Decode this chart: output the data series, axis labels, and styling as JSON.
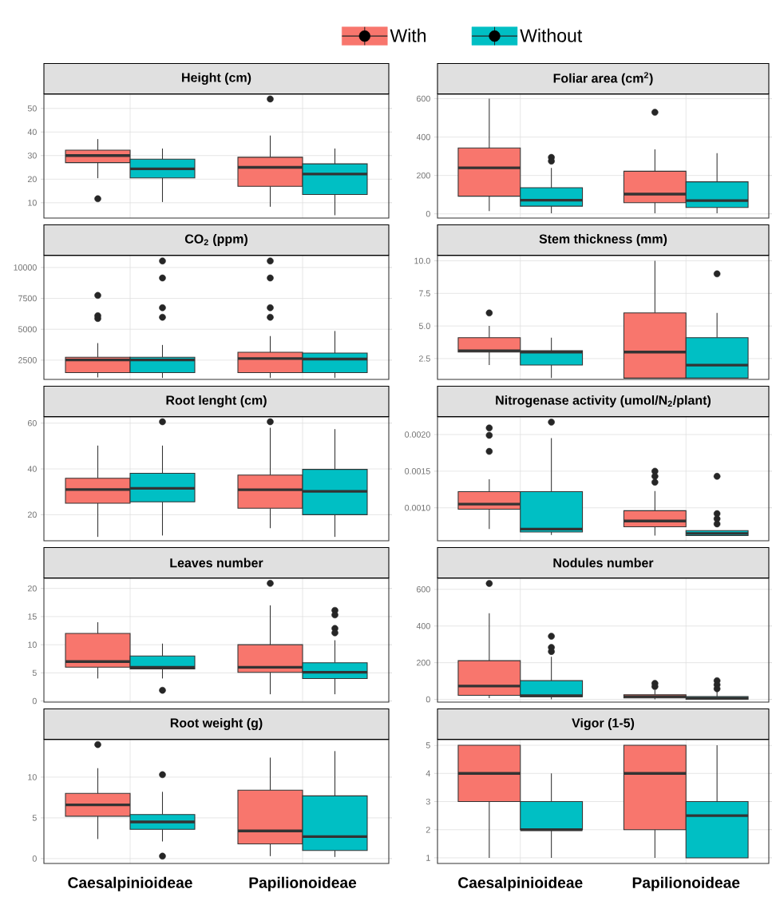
{
  "chart_data": [
    {
      "type": "box",
      "title": "Height (cm)",
      "categories": [
        null,
        null
      ],
      "ylim": [
        3.5,
        56
      ],
      "yticks": [
        10,
        20,
        30,
        40,
        50
      ],
      "grid": true,
      "tick_labels": "y",
      "legend": "top",
      "series": [
        {
          "name": "With",
          "color": "#f8766d",
          "boxes": [
            {
              "low": 20.4,
              "q1": 27,
              "median": 30,
              "q3": 32.3,
              "high": 37,
              "outliers": [
                11.7
              ]
            },
            {
              "low": 8.3,
              "q1": 17,
              "median": 25,
              "q3": 29.3,
              "high": 38.5,
              "outliers": [
                54
              ]
            }
          ]
        },
        {
          "name": "Without",
          "color": "#00bfc4",
          "boxes": [
            {
              "low": 10.3,
              "q1": 20.5,
              "median": 24.4,
              "q3": 28.5,
              "high": 33
            },
            {
              "low": 4.7,
              "q1": 13.5,
              "median": 22.2,
              "q3": 26.5,
              "high": 33
            }
          ]
        }
      ]
    },
    {
      "type": "box",
      "title": "Foliar area (cm$^{2}$)",
      "categories": [
        null,
        null
      ],
      "ylim": [
        -22,
        623
      ],
      "yticks": [
        0,
        200,
        400,
        600
      ],
      "grid": true,
      "tick_labels": "y",
      "series": [
        {
          "color": "#f8766d",
          "boxes": [
            {
              "low": 14,
              "q1": 92,
              "median": 240,
              "q3": 343,
              "high": 600
            },
            {
              "low": 3,
              "q1": 58,
              "median": 103,
              "q3": 222,
              "high": 336,
              "outliers": [
                529
              ]
            }
          ]
        },
        {
          "color": "#00bfc4",
          "boxes": [
            {
              "low": 3,
              "q1": 40,
              "median": 71,
              "q3": 136,
              "high": 239,
              "outliers": [
                294,
                275
              ]
            },
            {
              "low": 3,
              "q1": 33,
              "median": 69,
              "q3": 167,
              "high": 316
            }
          ]
        }
      ]
    },
    {
      "type": "box",
      "title": "CO$_{2}$ (ppm)",
      "categories": [
        null,
        null
      ],
      "ylim": [
        940,
        10960
      ],
      "yticks": [
        2500,
        5000,
        7500,
        10000
      ],
      "grid": true,
      "tick_labels": "y",
      "series": [
        {
          "color": "#f8766d",
          "boxes": [
            {
              "low": 1100,
              "q1": 1490,
              "median": 2520,
              "q3": 2740,
              "high": 3880,
              "outliers": [
                7740,
                6090,
                5870
              ]
            },
            {
              "low": 1060,
              "q1": 1490,
              "median": 2630,
              "q3": 3140,
              "high": 4450,
              "outliers": [
                10530,
                9150,
                6740,
                5970
              ]
            }
          ]
        },
        {
          "color": "#00bfc4",
          "boxes": [
            {
              "low": 1060,
              "q1": 1490,
              "median": 2520,
              "q3": 2740,
              "high": 3730,
              "outliers": [
                10530,
                9150,
                6740,
                5970
              ]
            },
            {
              "low": 1060,
              "q1": 1490,
              "median": 2590,
              "q3": 3070,
              "high": 4860
            }
          ]
        }
      ]
    },
    {
      "type": "box",
      "title": "Stem thickness (mm)",
      "categories": [
        null,
        null
      ],
      "ylim": [
        0.9,
        10.4
      ],
      "yticks": [
        {
          "value": 2.5,
          "label": "2.5"
        },
        {
          "value": 5,
          "label": "5.0"
        },
        {
          "value": 7.5,
          "label": "7.5"
        },
        {
          "value": 10,
          "label": "10.0"
        }
      ],
      "grid": true,
      "tick_labels": "y",
      "series": [
        {
          "color": "#f8766d",
          "boxes": [
            {
              "low": 2,
              "q1": 3,
              "median": 3.1,
              "q3": 4.1,
              "high": 5,
              "outliers": [
                6
              ]
            },
            {
              "low": 1,
              "q1": 1,
              "median": 3,
              "q3": 6,
              "high": 10
            }
          ]
        },
        {
          "color": "#00bfc4",
          "boxes": [
            {
              "low": 1,
              "q1": 2,
              "median": 3,
              "q3": 3.1,
              "high": 4.1
            },
            {
              "low": 1,
              "q1": 1,
              "median": 2,
              "q3": 4.1,
              "high": 6,
              "outliers": [
                9
              ]
            }
          ]
        }
      ]
    },
    {
      "type": "box",
      "title": "Root lenght (cm)",
      "categories": [
        null,
        null
      ],
      "ylim": [
        8.6,
        62.7
      ],
      "yticks": [
        20,
        40,
        60
      ],
      "grid": true,
      "tick_labels": "y",
      "series": [
        {
          "color": "#f8766d",
          "boxes": [
            {
              "low": 10.3,
              "q1": 25,
              "median": 31,
              "q3": 35.9,
              "high": 50.2
            },
            {
              "low": 14.1,
              "q1": 22.8,
              "median": 30.9,
              "q3": 37.3,
              "high": 58,
              "outliers": [
                60.6
              ]
            }
          ]
        },
        {
          "color": "#00bfc4",
          "boxes": [
            {
              "low": 10.9,
              "q1": 25.6,
              "median": 31.5,
              "q3": 38.1,
              "high": 50.2,
              "outliers": [
                60.6
              ]
            },
            {
              "low": 10.3,
              "q1": 20,
              "median": 30.2,
              "q3": 39.8,
              "high": 57.4
            }
          ]
        }
      ]
    },
    {
      "type": "box",
      "title": "Nitrogenase activity (umol/N$_{2}$/plant)",
      "categories": [
        null,
        null
      ],
      "ylim": [
        0.00055,
        0.00224
      ],
      "yticks": [
        {
          "value": 0.001,
          "label": "0.0010"
        },
        {
          "value": 0.0015,
          "label": "0.0015"
        },
        {
          "value": 0.002,
          "label": "0.0020"
        }
      ],
      "grid": true,
      "tick_labels": "y",
      "series": [
        {
          "color": "#f8766d",
          "boxes": [
            {
              "low": 0.00071,
              "q1": 0.00098,
              "median": 0.00105,
              "q3": 0.00122,
              "high": 0.00139,
              "outliers": [
                0.00209,
                0.00199,
                0.00177
              ]
            },
            {
              "low": 0.00062,
              "q1": 0.00074,
              "median": 0.00082,
              "q3": 0.00096,
              "high": 0.00123,
              "outliers": [
                0.0015,
                0.00143,
                0.00135
              ]
            }
          ]
        },
        {
          "color": "#00bfc4",
          "boxes": [
            {
              "low": 0.00063,
              "q1": 0.00067,
              "median": 0.00071,
              "q3": 0.00122,
              "high": 0.00195,
              "outliers": [
                0.00217
              ]
            },
            {
              "low": 0.00062,
              "q1": 0.00062,
              "median": 0.00065,
              "q3": 0.00069,
              "high": 0.00069,
              "outliers": [
                0.00143,
                0.00092,
                0.00085,
                0.00078
              ]
            }
          ]
        }
      ]
    },
    {
      "type": "box",
      "title": "Leaves number",
      "categories": [
        null,
        null
      ],
      "ylim": [
        -0.2,
        21.8
      ],
      "yticks": [
        0,
        5,
        10,
        15,
        20
      ],
      "grid": true,
      "tick_labels": "y",
      "series": [
        {
          "color": "#f8766d",
          "boxes": [
            {
              "low": 4,
              "q1": 6,
              "median": 7,
              "q3": 12,
              "high": 14
            },
            {
              "low": 1.2,
              "q1": 5.1,
              "median": 6,
              "q3": 10,
              "high": 17,
              "outliers": [
                20.9
              ]
            }
          ]
        },
        {
          "color": "#00bfc4",
          "boxes": [
            {
              "low": 4,
              "q1": 5.7,
              "median": 6,
              "q3": 8,
              "high": 10.2,
              "outliers": [
                1.9
              ]
            },
            {
              "low": 1.2,
              "q1": 4,
              "median": 5.1,
              "q3": 6.8,
              "high": 10.8,
              "outliers": [
                16.1,
                15.3,
                12.9,
                12.1
              ]
            }
          ]
        }
      ]
    },
    {
      "type": "box",
      "title": "Nodules number",
      "categories": [
        null,
        null
      ],
      "ylim": [
        -15,
        660
      ],
      "yticks": [
        0,
        200,
        400,
        600
      ],
      "grid": true,
      "tick_labels": "y",
      "series": [
        {
          "color": "#f8766d",
          "boxes": [
            {
              "low": 7,
              "q1": 22,
              "median": 73,
              "q3": 211,
              "high": 469,
              "outliers": [
                632
              ]
            },
            {
              "low": 0,
              "q1": 8,
              "median": 15,
              "q3": 25,
              "high": 50,
              "outliers": [
                87,
                70
              ]
            }
          ]
        },
        {
          "color": "#00bfc4",
          "boxes": [
            {
              "low": 0,
              "q1": 15,
              "median": 20,
              "q3": 102,
              "high": 232,
              "outliers": [
                344,
                283,
                261
              ]
            },
            {
              "low": 0,
              "q1": 0,
              "median": 5,
              "q3": 15,
              "high": 45,
              "outliers": [
                102,
                80,
                58
              ]
            }
          ]
        }
      ]
    },
    {
      "type": "box",
      "title": "Root weight (g)",
      "categories": [
        "Caesalpinioideae",
        "Papilionoideae"
      ],
      "ylim": [
        -0.6,
        14.6
      ],
      "yticks": [
        0,
        5,
        10
      ],
      "grid": true,
      "series": [
        {
          "color": "#f8766d",
          "boxes": [
            {
              "low": 2.4,
              "q1": 5.2,
              "median": 6.6,
              "q3": 8,
              "high": 11.1,
              "outliers": [
                14
              ]
            },
            {
              "low": 0.3,
              "q1": 1.8,
              "median": 3.4,
              "q3": 8.4,
              "high": 12.4
            }
          ]
        },
        {
          "color": "#00bfc4",
          "boxes": [
            {
              "low": 2.1,
              "q1": 3.6,
              "median": 4.5,
              "q3": 5.4,
              "high": 8.2,
              "outliers": [
                10.3,
                0.3
              ]
            },
            {
              "low": 0.2,
              "q1": 1,
              "median": 2.7,
              "q3": 7.7,
              "high": 13.2
            }
          ]
        }
      ]
    },
    {
      "type": "box",
      "title": "Vigor (1-5)",
      "categories": [
        "Caesalpinioideae",
        "Papilionoideae"
      ],
      "ylim": [
        0.8,
        5.2
      ],
      "yticks": [
        1,
        2,
        3,
        4,
        5
      ],
      "grid": true,
      "series": [
        {
          "color": "#f8766d",
          "boxes": [
            {
              "low": 1,
              "q1": 3,
              "median": 4,
              "q3": 5,
              "high": 5
            },
            {
              "low": 1,
              "q1": 2,
              "median": 4,
              "q3": 5,
              "high": 5
            }
          ]
        },
        {
          "color": "#00bfc4",
          "boxes": [
            {
              "low": 1,
              "q1": 2,
              "median": 2,
              "q3": 3,
              "high": 4
            },
            {
              "low": 1,
              "q1": 1,
              "median": 2.5,
              "q3": 3,
              "high": 5
            }
          ]
        }
      ]
    }
  ]
}
